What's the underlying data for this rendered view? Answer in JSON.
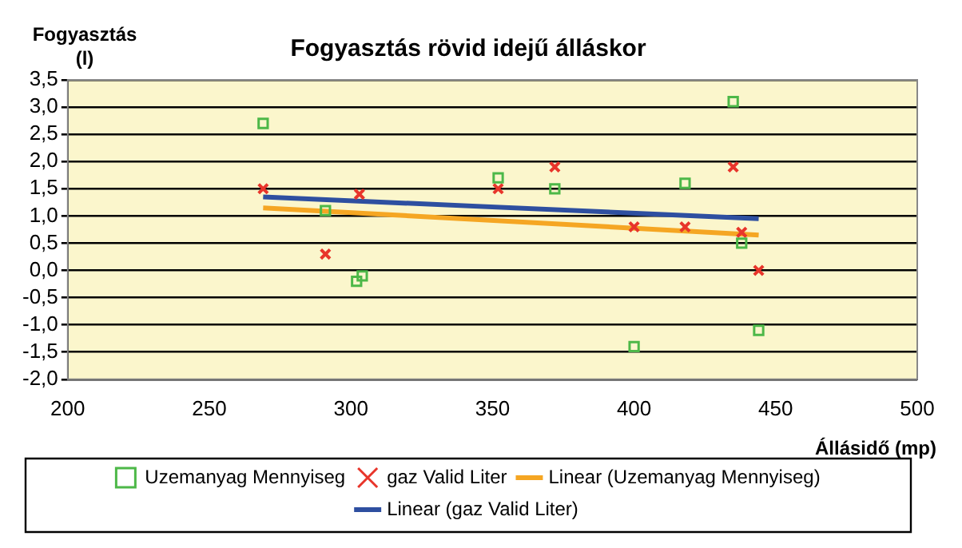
{
  "chart_data": {
    "type": "scatter",
    "title": "Fogyasztás rövid idejű álláskor",
    "xlabel": "Állásidő (mp)",
    "ylabel": "Fogyasztás (l)",
    "series": [
      {
        "name": "Uzemanyag Mennyiseg",
        "color": "#4db848",
        "marker": "square",
        "x": [
          269,
          291,
          302,
          304,
          352,
          372,
          400,
          418,
          435,
          438,
          444
        ],
        "values": [
          2.7,
          1.1,
          -0.2,
          -0.1,
          1.7,
          1.5,
          -1.4,
          1.6,
          3.1,
          0.5,
          -1.1
        ]
      },
      {
        "name": "gaz Valid Liter",
        "color": "#e8352b",
        "marker": "cross",
        "x": [
          269,
          291,
          303,
          352,
          372,
          400,
          418,
          435,
          438,
          444
        ],
        "values": [
          1.5,
          0.3,
          1.4,
          1.5,
          1.9,
          0.8,
          0.8,
          1.9,
          0.7,
          0.0
        ]
      },
      {
        "name": "Linear (Uzemanyag Mennyiseg)",
        "type": "line",
        "color": "#f5a623",
        "marker": "none",
        "x": [
          269,
          444
        ],
        "values": [
          1.15,
          0.65
        ]
      },
      {
        "name": "Linear (gaz Valid Liter)",
        "type": "line",
        "color": "#2e4fa0",
        "marker": "none",
        "x": [
          269,
          444
        ],
        "values": [
          1.35,
          0.95
        ]
      }
    ],
    "xlim": [
      200,
      500
    ],
    "xticks": [
      200,
      250,
      300,
      350,
      400,
      450,
      500
    ],
    "ylim": [
      -2,
      3.5
    ],
    "yticks": [
      {
        "value": -2,
        "label": "-2,0"
      },
      {
        "value": -1.5,
        "label": "-1,5"
      },
      {
        "value": -1,
        "label": "-1,0"
      },
      {
        "value": -0.5,
        "label": "-0,5"
      },
      {
        "value": 0,
        "label": "0,0"
      },
      {
        "value": 0.5,
        "label": "0,5"
      },
      {
        "value": 1,
        "label": "1,0"
      },
      {
        "value": 1.5,
        "label": "1,5"
      },
      {
        "value": 2,
        "label": "2,0"
      },
      {
        "value": 2.5,
        "label": "2,5"
      },
      {
        "value": 3,
        "label": "3,0"
      },
      {
        "value": 3.5,
        "label": "3,5"
      }
    ],
    "grid": "y",
    "legend": "bottom"
  }
}
